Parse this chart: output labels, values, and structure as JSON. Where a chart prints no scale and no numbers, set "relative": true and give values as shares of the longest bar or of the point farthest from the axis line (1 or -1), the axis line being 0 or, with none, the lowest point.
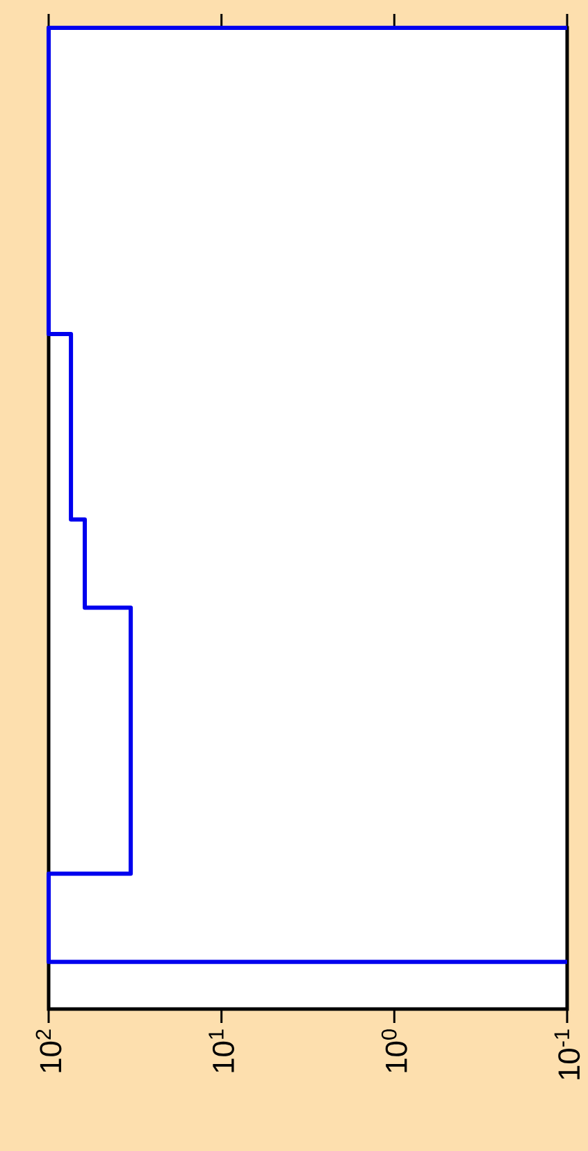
{
  "chart_data": {
    "type": "line",
    "relative": true,
    "log": "x",
    "xlim": [
      100,
      0.1
    ],
    "xticks": [
      {
        "value": 100,
        "label": "10$^{2}$"
      },
      {
        "value": 10,
        "label": "10$^{1}$"
      },
      {
        "value": 1,
        "label": "10$^{0}$"
      },
      {
        "value": 0.1,
        "label": "10$^{-1}$"
      }
    ],
    "series": [
      {
        "color": "#0000ee",
        "x": [
          0.1,
          100,
          100,
          74.3,
          74.3,
          61.8,
          61.8,
          33.5,
          33.5,
          100,
          100,
          0.1
        ],
        "values": [
          1,
          1,
          0.688,
          0.688,
          0.499,
          0.499,
          0.409,
          0.409,
          0.138,
          0.138,
          0.048,
          0.048
        ]
      }
    ]
  }
}
